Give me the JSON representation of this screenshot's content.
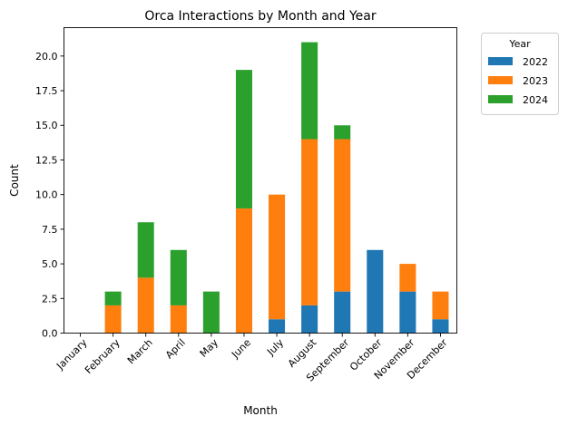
{
  "chart_data": {
    "type": "bar",
    "stacked": true,
    "title": "Orca Interactions by Month and Year",
    "xlabel": "Month",
    "ylabel": "Count",
    "categories": [
      "January",
      "February",
      "March",
      "April",
      "May",
      "June",
      "July",
      "August",
      "September",
      "October",
      "November",
      "December"
    ],
    "series": [
      {
        "name": "2022",
        "color": "#1f77b4",
        "values": [
          0,
          0,
          0,
          0,
          0,
          0,
          1,
          2,
          3,
          6,
          3,
          1
        ]
      },
      {
        "name": "2023",
        "color": "#ff7f0e",
        "values": [
          0,
          2,
          4,
          2,
          0,
          9,
          9,
          12,
          11,
          0,
          2,
          2
        ]
      },
      {
        "name": "2024",
        "color": "#2ca02c",
        "values": [
          0,
          1,
          4,
          4,
          3,
          10,
          0,
          7,
          1,
          0,
          0,
          0
        ]
      }
    ],
    "ylim": [
      0,
      22.05
    ],
    "yticks": [
      "0.0",
      "2.5",
      "5.0",
      "7.5",
      "10.0",
      "12.5",
      "15.0",
      "17.5",
      "20.0"
    ],
    "grid": false,
    "legend": {
      "title": "Year",
      "placement": "outside upper right"
    }
  }
}
